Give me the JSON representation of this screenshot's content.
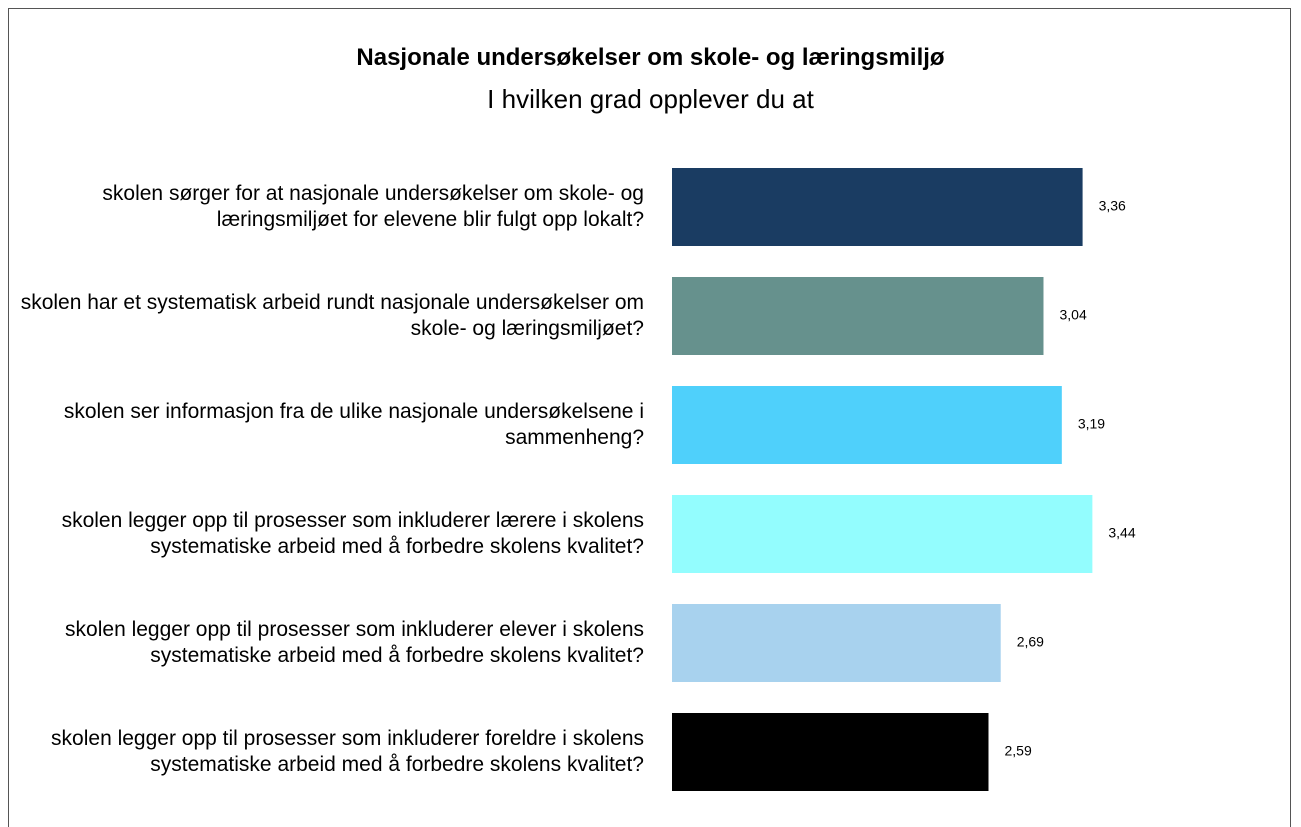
{
  "chart_data": {
    "type": "barh",
    "title": "Nasjonale undersøkelser om skole- og læringsmiljø",
    "subtitle": "I hvilken grad opplever du at",
    "categories": [
      "skolen sørger for at nasjonale undersøkelser om skole- og læringsmiljøet for elevene blir fulgt opp lokalt?",
      "skolen har et systematisk arbeid rundt nasjonale undersøkelser om skole- og læringsmiljøet?",
      "skolen ser informasjon fra de ulike nasjonale undersøkelsene i sammenheng?",
      "skolen legger opp til prosesser som inkluderer lærere i skolens systematiske arbeid med å forbedre skolens kvalitet?",
      "skolen legger opp til prosesser som inkluderer elever i skolens systematiske arbeid med å forbedre skolens kvalitet?",
      "skolen legger opp til prosesser som inkluderer foreldre i skolens systematiske arbeid med å forbedre skolens kvalitet?"
    ],
    "values": [
      3.36,
      3.04,
      3.19,
      3.44,
      2.69,
      2.59
    ],
    "value_labels": [
      "3,36",
      "3,04",
      "3,19",
      "3,44",
      "2,69",
      "2,59"
    ],
    "colors": [
      "#1a3c62",
      "#66918d",
      "#4fd0fb",
      "#93fdfe",
      "#a8d2ee",
      "#000000"
    ],
    "xlim": [
      0,
      5
    ]
  }
}
